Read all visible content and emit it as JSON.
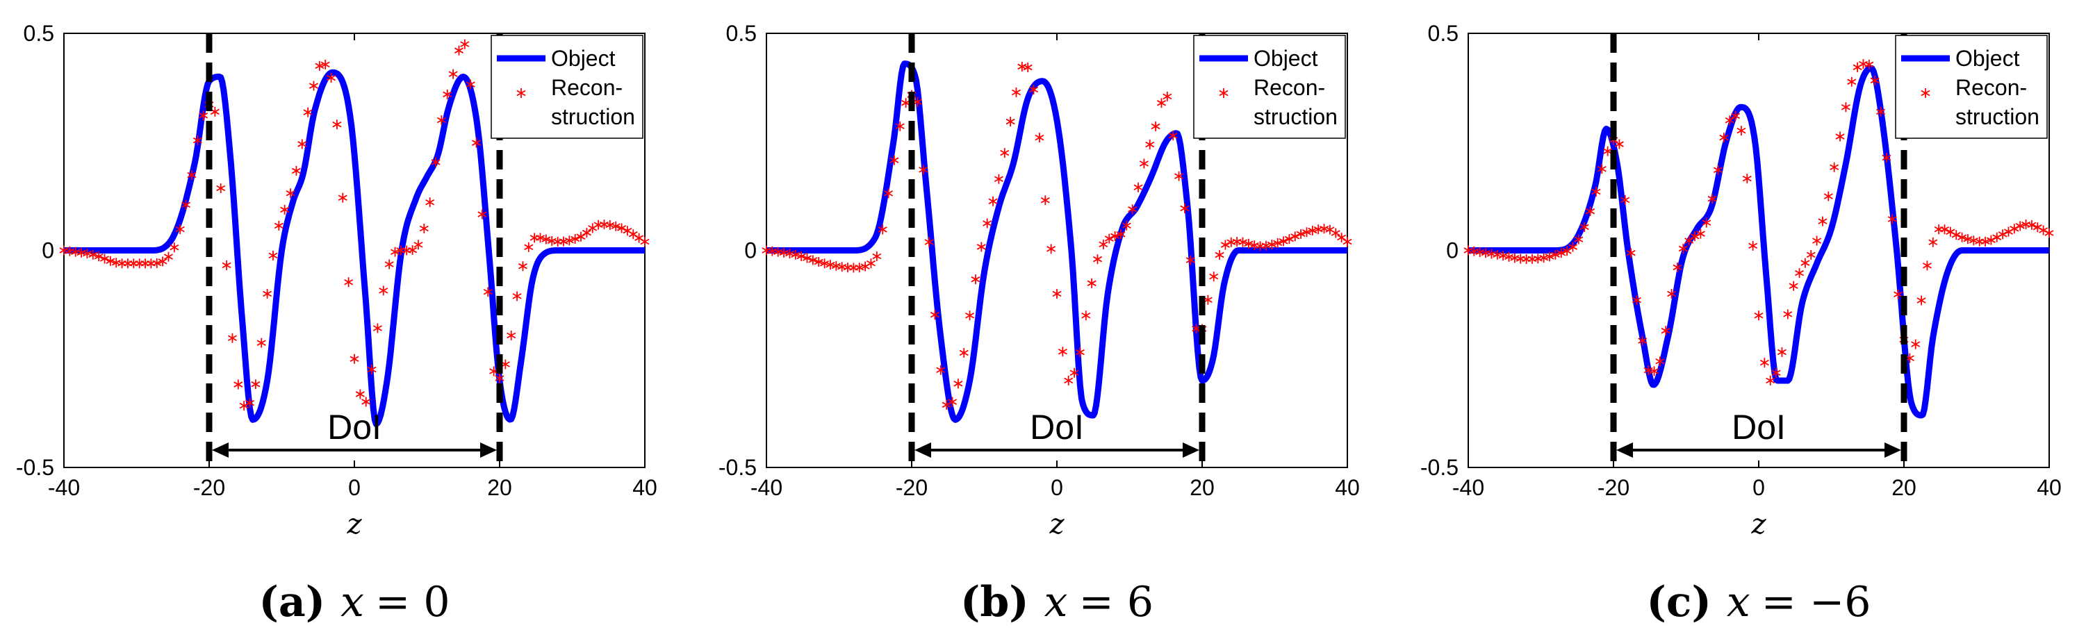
{
  "figure": {
    "series_names": [
      "Object",
      "Recon-",
      "struction"
    ],
    "colors": {
      "object": "#0000ff",
      "reconstruction": "#ff0000",
      "dol": "#000000",
      "axes": "#000000"
    }
  },
  "chart_data": [
    {
      "type": "line",
      "panel_label": "(a)",
      "caption_var": "x",
      "caption_eq": "= 0",
      "xlabel": "z",
      "ylabel": "",
      "xlim": [
        -40,
        40
      ],
      "ylim": [
        -0.5,
        0.5
      ],
      "xticks": [
        "-40",
        "-20",
        "0",
        "20",
        "40"
      ],
      "xtick_values": [
        -40,
        -20,
        0,
        20,
        40
      ],
      "yticks": [
        "0.5",
        "0",
        "-0.5"
      ],
      "ytick_values": [
        0.5,
        0,
        -0.5
      ],
      "dol": {
        "label": "DoI",
        "from": -20,
        "to": 20,
        "y": -0.46
      },
      "legend": {
        "placement": "top-right",
        "entries": [
          "Object",
          "Recon-",
          "struction"
        ]
      },
      "series": [
        {
          "name": "Object",
          "style": "line",
          "x": [
            -40,
            -28,
            -25,
            -22,
            -20,
            -18.5,
            -17,
            -15.5,
            -14,
            -12,
            -10,
            -8.5,
            -7,
            -5.5,
            -3,
            -0.5,
            1.5,
            3,
            4.5,
            6.5,
            8.5,
            10,
            11.5,
            13,
            15,
            17,
            18.5,
            20,
            21.5,
            23,
            24.5,
            26,
            28,
            40
          ],
          "y": [
            0,
            0,
            0.03,
            0.2,
            0.39,
            0.4,
            0.2,
            -0.15,
            -0.39,
            -0.3,
            0.0,
            0.11,
            0.18,
            0.32,
            0.41,
            0.3,
            -0.1,
            -0.4,
            -0.3,
            0.0,
            0.12,
            0.17,
            0.22,
            0.33,
            0.4,
            0.28,
            0.0,
            -0.3,
            -0.39,
            -0.25,
            -0.07,
            -0.01,
            0,
            0
          ]
        },
        {
          "name": "Recon-struction",
          "style": "markers",
          "x": [
            -40,
            -36,
            -32,
            -28,
            -25,
            -23,
            -21,
            -19.5,
            -18,
            -16.5,
            -15,
            -13.5,
            -12,
            -10.5,
            -9,
            -7.5,
            -6,
            -4.5,
            -3,
            -1.5,
            0,
            1.5,
            3,
            4.5,
            6,
            7.5,
            9,
            10.5,
            12,
            13.5,
            15,
            16.5,
            18,
            19.5,
            21,
            23,
            25,
            28,
            31,
            34,
            37,
            40
          ],
          "y": [
            0,
            -0.01,
            -0.03,
            -0.03,
            0.0,
            0.12,
            0.3,
            0.34,
            0.05,
            -0.25,
            -0.36,
            -0.3,
            -0.1,
            0.05,
            0.12,
            0.22,
            0.35,
            0.43,
            0.38,
            0.1,
            -0.25,
            -0.35,
            -0.2,
            -0.05,
            0.0,
            0.0,
            0.02,
            0.12,
            0.3,
            0.4,
            0.48,
            0.3,
            0.0,
            -0.3,
            -0.25,
            -0.05,
            0.03,
            0.02,
            0.03,
            0.06,
            0.05,
            0.02
          ]
        }
      ]
    },
    {
      "type": "line",
      "panel_label": "(b)",
      "caption_var": "x",
      "caption_eq": "= 6",
      "xlabel": "z",
      "ylabel": "",
      "xlim": [
        -40,
        40
      ],
      "ylim": [
        -0.5,
        0.5
      ],
      "xticks": [
        "-40",
        "-20",
        "0",
        "20",
        "40"
      ],
      "xtick_values": [
        -40,
        -20,
        0,
        20,
        40
      ],
      "yticks": [
        "0.5",
        "0",
        "-0.5"
      ],
      "ytick_values": [
        0.5,
        0,
        -0.5
      ],
      "dol": {
        "label": "DoI",
        "from": -20,
        "to": 20,
        "y": -0.46
      },
      "legend": {
        "placement": "top-right",
        "entries": [
          "Object",
          "Recon-",
          "struction"
        ]
      },
      "series": [
        {
          "name": "Object",
          "style": "line",
          "x": [
            -40,
            -28,
            -25,
            -22.5,
            -21,
            -19.5,
            -18,
            -16,
            -14,
            -12,
            -10,
            -8,
            -6,
            -4,
            -2,
            0,
            2,
            3.5,
            5,
            7,
            9,
            11,
            13,
            15,
            16.5,
            18,
            20,
            21.5,
            23,
            25,
            27,
            40
          ],
          "y": [
            0,
            0,
            0.03,
            0.25,
            0.43,
            0.4,
            0.15,
            -0.2,
            -0.39,
            -0.3,
            -0.05,
            0.1,
            0.2,
            0.35,
            0.39,
            0.3,
            0.0,
            -0.35,
            -0.38,
            -0.1,
            0.05,
            0.1,
            0.17,
            0.25,
            0.27,
            0.1,
            -0.3,
            -0.25,
            -0.08,
            0,
            0,
            0
          ]
        },
        {
          "name": "Recon-struction",
          "style": "markers",
          "x": [
            -40,
            -36,
            -32,
            -28,
            -25,
            -23,
            -21,
            -19.5,
            -18,
            -16.5,
            -15,
            -13.5,
            -12,
            -10.5,
            -9,
            -7.5,
            -6,
            -4.5,
            -3,
            -1.5,
            0,
            1.5,
            3,
            4.5,
            6,
            7.5,
            9,
            10.5,
            12,
            13.5,
            15,
            16.5,
            18,
            19.5,
            21,
            23,
            25,
            28,
            31,
            34,
            37,
            40
          ],
          "y": [
            0,
            -0.01,
            -0.03,
            -0.04,
            -0.02,
            0.15,
            0.33,
            0.36,
            0.1,
            -0.2,
            -0.36,
            -0.3,
            -0.15,
            0.0,
            0.1,
            0.2,
            0.33,
            0.43,
            0.35,
            0.1,
            -0.1,
            -0.3,
            -0.25,
            -0.1,
            0.0,
            0.03,
            0.04,
            0.1,
            0.2,
            0.28,
            0.36,
            0.2,
            0.05,
            -0.2,
            -0.1,
            0.01,
            0.02,
            0.01,
            0.02,
            0.04,
            0.05,
            0.02
          ]
        }
      ]
    },
    {
      "type": "line",
      "panel_label": "(c)",
      "caption_var": "x",
      "caption_eq": "= −6",
      "xlabel": "z",
      "ylabel": "",
      "xlim": [
        -40,
        40
      ],
      "ylim": [
        -0.5,
        0.5
      ],
      "xticks": [
        "-40",
        "-20",
        "0",
        "20",
        "40"
      ],
      "xtick_values": [
        -40,
        -20,
        0,
        20,
        40
      ],
      "yticks": [
        "0.5",
        "0",
        "-0.5"
      ],
      "ytick_values": [
        0.5,
        0,
        -0.5
      ],
      "dol": {
        "label": "DoI",
        "from": -20,
        "to": 20,
        "y": -0.46
      },
      "legend": {
        "placement": "top-right",
        "entries": [
          "Object",
          "Recon-",
          "struction"
        ]
      },
      "series": [
        {
          "name": "Object",
          "style": "line",
          "x": [
            -40,
            -28,
            -25,
            -22.5,
            -21,
            -19.5,
            -18,
            -16,
            -14.5,
            -12.5,
            -10.5,
            -8.5,
            -6.5,
            -4.5,
            -2.5,
            -0.5,
            1,
            2.5,
            4,
            6,
            8,
            10,
            12,
            14,
            15.5,
            17,
            19,
            21,
            22.5,
            24,
            26,
            28,
            40
          ],
          "y": [
            0,
            0,
            0.03,
            0.15,
            0.28,
            0.2,
            0.0,
            -0.2,
            -0.31,
            -0.2,
            -0.02,
            0.05,
            0.1,
            0.25,
            0.33,
            0.25,
            -0.05,
            -0.3,
            -0.3,
            -0.12,
            -0.03,
            0.05,
            0.2,
            0.38,
            0.42,
            0.3,
            0.0,
            -0.35,
            -0.38,
            -0.2,
            -0.05,
            0,
            0
          ]
        },
        {
          "name": "Recon-struction",
          "style": "markers",
          "x": [
            -40,
            -36,
            -32,
            -28,
            -25,
            -23,
            -21,
            -19.5,
            -18,
            -16.5,
            -15,
            -13.5,
            -12,
            -10.5,
            -9,
            -7.5,
            -6,
            -4.5,
            -3,
            -1.5,
            0,
            1.5,
            3,
            4.5,
            6,
            7.5,
            9,
            10.5,
            12,
            13.5,
            15,
            16.5,
            18,
            19.5,
            21,
            23,
            25,
            28,
            31,
            34,
            37,
            40
          ],
          "y": [
            0,
            -0.01,
            -0.02,
            -0.01,
            0.02,
            0.1,
            0.22,
            0.26,
            0.05,
            -0.15,
            -0.28,
            -0.25,
            -0.1,
            0.0,
            0.03,
            0.05,
            0.15,
            0.28,
            0.31,
            0.15,
            -0.15,
            -0.3,
            -0.25,
            -0.1,
            -0.04,
            0.0,
            0.08,
            0.2,
            0.33,
            0.42,
            0.43,
            0.35,
            0.15,
            -0.15,
            -0.25,
            -0.05,
            0.05,
            0.03,
            0.02,
            0.04,
            0.06,
            0.04
          ]
        }
      ]
    }
  ]
}
